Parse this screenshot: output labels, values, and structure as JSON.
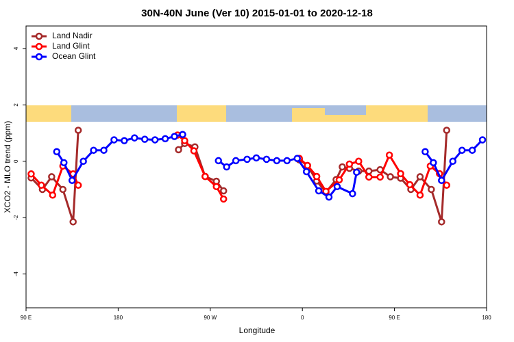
{
  "chart_data": {
    "type": "line",
    "title": "30N-40N June (Ver 10)   2015-01-01 to 2020-12-18",
    "x_label": "Longitude",
    "y_label": "XCO2 - MLO trend (ppm)",
    "xlim": [
      90,
      540
    ],
    "xticks": [
      {
        "value": 90,
        "label": "90 E"
      },
      {
        "value": 180,
        "label": "180"
      },
      {
        "value": 270,
        "label": "90 W"
      },
      {
        "value": 360,
        "label": "0"
      },
      {
        "value": 450,
        "label": "90 E"
      },
      {
        "value": 540,
        "label": "180"
      }
    ],
    "ylim": [
      -5.2,
      4.8
    ],
    "yticks": [
      -4,
      -2,
      0,
      2,
      4
    ],
    "legend": "upper left",
    "series": [
      {
        "name": "Land Nadir",
        "color": "#a52a2a",
        "x": [
          95,
          106,
          115,
          126,
          136,
          141,
          null,
          239,
          245,
          255,
          265,
          276,
          283,
          null,
          357,
          365,
          374,
          383,
          393,
          399,
          406,
          415,
          425,
          436,
          446,
          456,
          466,
          475,
          486,
          496,
          501
        ],
        "values": [
          -0.59,
          -1.0,
          -0.55,
          -1.0,
          -2.15,
          1.1,
          null,
          0.41,
          0.63,
          0.51,
          -0.54,
          -0.71,
          -1.05,
          null,
          0.05,
          -0.15,
          -0.7,
          -1.1,
          -0.65,
          -0.2,
          -0.25,
          -0.35,
          -0.35,
          -0.3,
          -0.55,
          -0.6,
          -1.0,
          -0.55,
          -1.0,
          -2.15,
          1.1
        ]
      },
      {
        "name": "Land Glint",
        "color": "#ff0000",
        "x": [
          95,
          105,
          116,
          126,
          136,
          141,
          null,
          238,
          245,
          254,
          265,
          276,
          283,
          null,
          357,
          365,
          374,
          383,
          396,
          406,
          415,
          425,
          436,
          445,
          456,
          465,
          475,
          485,
          494,
          501
        ],
        "values": [
          -0.45,
          -0.85,
          -1.2,
          -0.17,
          -0.45,
          -0.85,
          null,
          0.93,
          0.73,
          0.37,
          -0.54,
          -0.9,
          -1.34,
          null,
          0.1,
          -0.15,
          -0.54,
          -1.07,
          -0.66,
          -0.1,
          0.0,
          -0.56,
          -0.56,
          0.22,
          -0.44,
          -0.83,
          -1.2,
          -0.17,
          -0.44,
          -0.85
        ]
      },
      {
        "name": "Ocean Glint",
        "color": "#0000ff",
        "x": [
          120,
          127,
          135,
          146,
          156,
          166,
          176,
          186,
          196,
          206,
          216,
          226,
          235,
          243,
          null,
          278,
          286,
          295,
          306,
          315,
          325,
          335,
          345,
          355,
          364,
          376,
          386,
          394,
          409,
          413,
          null,
          480,
          488,
          496,
          507,
          516,
          526,
          536
        ],
        "values": [
          0.34,
          -0.05,
          -0.68,
          0.0,
          0.39,
          0.39,
          0.76,
          0.73,
          0.83,
          0.78,
          0.76,
          0.8,
          0.88,
          0.95,
          null,
          0.02,
          -0.2,
          0.02,
          0.07,
          0.12,
          0.07,
          0.02,
          0.02,
          0.1,
          -0.37,
          -1.05,
          -1.27,
          -0.9,
          -1.15,
          -0.39,
          null,
          0.34,
          -0.05,
          -0.68,
          0.0,
          0.39,
          0.39,
          0.76
        ]
      }
    ]
  }
}
